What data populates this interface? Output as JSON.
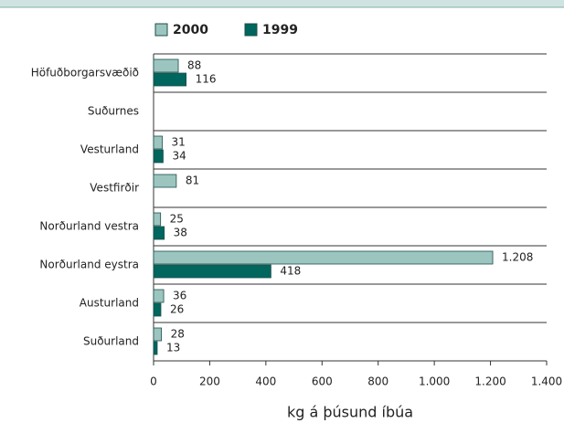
{
  "chart_data": {
    "type": "bar",
    "orientation": "horizontal",
    "x_label": "kg á þúsund íbúa",
    "categories": [
      "Höfuðborgarsvæðið",
      "Suðurnes",
      "Vesturland",
      "Vestfirðir",
      "Norðurland vestra",
      "Norðurland eystra",
      "Austurland",
      "Suðurland"
    ],
    "series": [
      {
        "name": "2000",
        "color": "#9cc5c0",
        "values": [
          88,
          null,
          31,
          81,
          25,
          1208,
          36,
          28
        ],
        "value_labels": [
          "88",
          null,
          "31",
          "81",
          "25",
          "1.208",
          "36",
          "28"
        ]
      },
      {
        "name": "1999",
        "color": "#00665e",
        "values": [
          116,
          null,
          34,
          null,
          38,
          418,
          26,
          13
        ],
        "value_labels": [
          "116",
          null,
          "34",
          null,
          "38",
          "418",
          "26",
          "13"
        ]
      }
    ],
    "xlim": [
      0,
      1400
    ],
    "xticks": [
      0,
      200,
      400,
      600,
      800,
      {
        "value": 1000,
        "label": "1.000"
      },
      {
        "value": 1200,
        "label": "1.200"
      },
      {
        "value": 1400,
        "label": "1.400"
      }
    ],
    "legend": "top"
  }
}
